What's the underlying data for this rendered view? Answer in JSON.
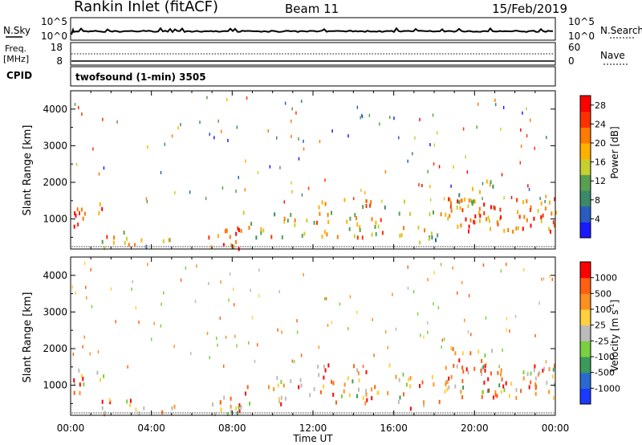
{
  "header": {
    "station": "Rankin Inlet (fitACF)",
    "beam": "Beam 11",
    "date": "15/Feb/2019"
  },
  "top_panels": {
    "nsky_label": "N.Sky",
    "nsky_ticks": [
      "10^5",
      "10^0"
    ],
    "nsearch_label": "N.Search",
    "nsearch_ticks": [
      "10^5",
      "10^0"
    ],
    "freq_label": "Freq.",
    "freq_unit": "[MHz]",
    "freq_ticks": [
      "18",
      "8"
    ],
    "nave_label": "Nave",
    "nave_ticks": [
      "60",
      "0"
    ],
    "cpid_label": "CPID",
    "cpid_text": "twofsound (1-min) 3505"
  },
  "chart_data": [
    {
      "type": "heatmap",
      "panel": "power",
      "ylabel": "Slant Range [km]",
      "xlabel": "",
      "x_ticks": [
        "00:00",
        "04:00",
        "08:00",
        "12:00",
        "16:00",
        "20:00",
        "00:00"
      ],
      "x_range_hours": [
        0,
        24
      ],
      "y_ticks": [
        "1000",
        "2000",
        "3000",
        "4000"
      ],
      "ylim": [
        180,
        4500
      ],
      "colorbar": {
        "label": "Power [dB]",
        "ticks": [
          "4",
          "8",
          "12",
          "16",
          "20",
          "24",
          "28"
        ],
        "range": [
          0,
          30
        ],
        "colors": [
          "#1a1aff",
          "#2a5cbf",
          "#3a8a6a",
          "#58a050",
          "#c8d030",
          "#ffb000",
          "#ff7a00",
          "#ff3000",
          "#ff0000"
        ]
      }
    },
    {
      "type": "heatmap",
      "panel": "velocity",
      "ylabel": "Slant Range [km]",
      "xlabel": "Time UT",
      "x_ticks": [
        "00:00",
        "04:00",
        "08:00",
        "12:00",
        "16:00",
        "20:00",
        "00:00"
      ],
      "x_range_hours": [
        0,
        24
      ],
      "y_ticks": [
        "1000",
        "2000",
        "3000",
        "4000"
      ],
      "ylim": [
        180,
        4500
      ],
      "colorbar": {
        "label": "Velocity [m s",
        "label_sup": "-1",
        "label_tail": "]",
        "ticks": [
          "1000",
          "500",
          "100",
          "25",
          "-25",
          "-100",
          "-500",
          "-1000"
        ],
        "colors": [
          "#1a3aff",
          "#2a6ad0",
          "#3a9a5a",
          "#7ad040",
          "#bbbbbb",
          "#ffd040",
          "#ff9020",
          "#ff6010",
          "#ff0000"
        ]
      }
    }
  ]
}
